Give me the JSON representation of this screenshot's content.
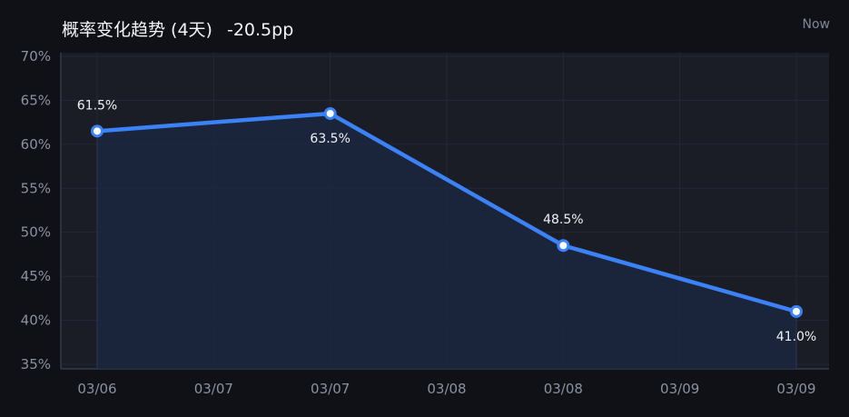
{
  "header": {
    "title": "概率变化趋势 (4天)",
    "delta": "-20.5pp",
    "time_badge": "Now"
  },
  "colors": {
    "line": "#3b82f6",
    "area": "#1b2740",
    "plot_bg": "#1a1c26",
    "grid": "#232838",
    "axis": "#353b4a",
    "marker_fill": "#ffffff"
  },
  "chart_data": {
    "type": "line",
    "title": "概率变化趋势 (4天)",
    "x_ticks": [
      "03/06",
      "03/07",
      "03/07",
      "03/08",
      "03/08",
      "03/09",
      "03/09"
    ],
    "y_ticks": [
      "35%",
      "40%",
      "45%",
      "50%",
      "55%",
      "60%",
      "65%",
      "70%"
    ],
    "ylim": [
      35,
      70
    ],
    "grid": true,
    "series": [
      {
        "points": [
          {
            "x": 0,
            "y": 61.5,
            "label": "61.5%"
          },
          {
            "x": 2,
            "y": 63.5,
            "label": "63.5%"
          },
          {
            "x": 4,
            "y": 48.5,
            "label": "48.5%"
          },
          {
            "x": 6,
            "y": 41.0,
            "label": "41.0%"
          }
        ]
      }
    ]
  }
}
